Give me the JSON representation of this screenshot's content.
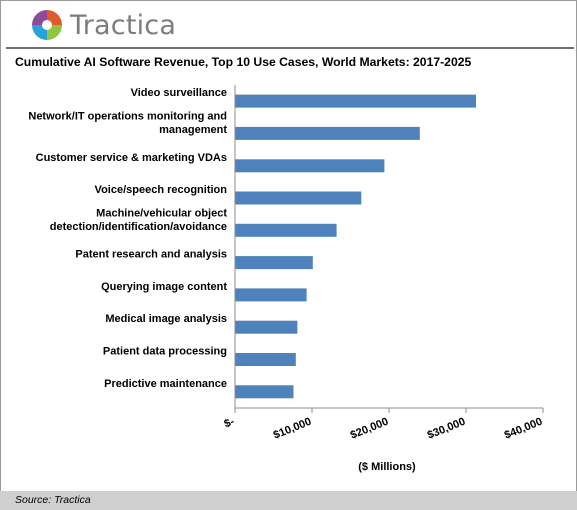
{
  "brand": {
    "name": "Tractica",
    "icon": "tractica-logo-icon"
  },
  "colors": {
    "bar": "#4f81bd",
    "axis": "#8c8c8c",
    "text": "#000000",
    "footer": "#cfcfcf"
  },
  "chart_data": {
    "type": "bar",
    "orientation": "horizontal",
    "title": "Cumulative AI Software Revenue, Top 10 Use Cases, World Markets: 2017-2025",
    "xlabel": "($ Millions)",
    "ylabel": "",
    "categories": [
      [
        "Video surveillance"
      ],
      [
        "Network/IT operations monitoring and",
        "management"
      ],
      [
        "Customer service & marketing VDAs"
      ],
      [
        "Voice/speech recognition"
      ],
      [
        "Machine/vehicular object",
        "detection/identification/avoidance"
      ],
      [
        "Patent research and analysis"
      ],
      [
        "Querying image content"
      ],
      [
        "Medical image analysis"
      ],
      [
        "Patient data processing"
      ],
      [
        "Predictive maintenance"
      ]
    ],
    "values": [
      31300,
      24000,
      19400,
      16400,
      13200,
      10100,
      9300,
      8100,
      7900,
      7600
    ],
    "xlim": [
      0,
      40000
    ],
    "x_ticks": [
      0,
      10000,
      20000,
      30000,
      40000
    ],
    "x_tick_labels": [
      "$-",
      "$10,000",
      "$20,000",
      "$30,000",
      "$40,000"
    ],
    "grid": false,
    "legend": "none"
  },
  "footer": {
    "source": "Source: Tractica"
  }
}
